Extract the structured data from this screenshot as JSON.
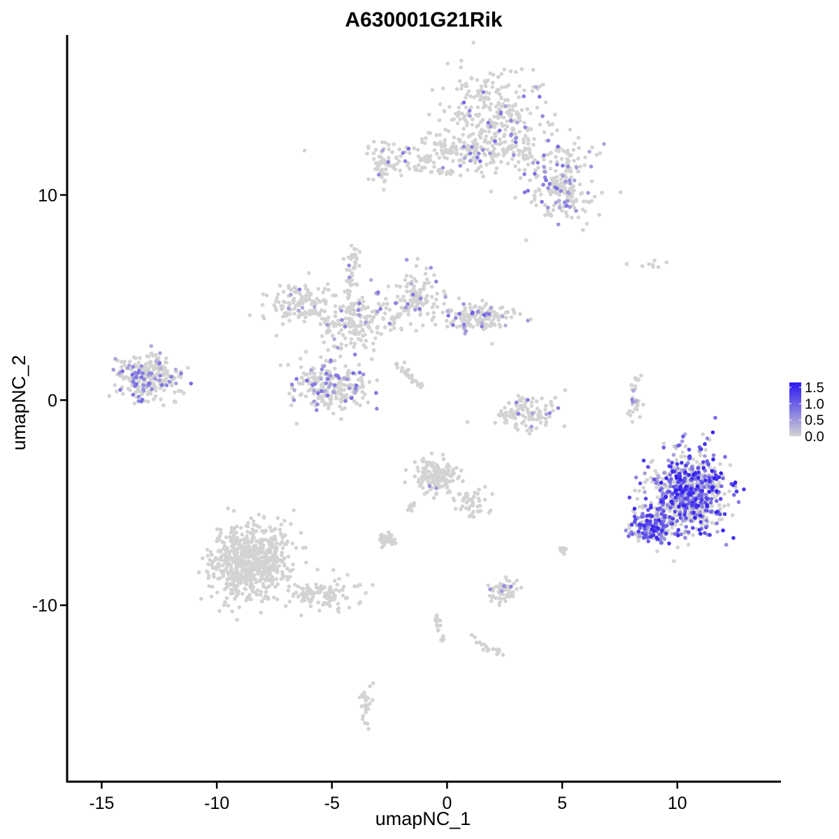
{
  "chart_data": {
    "type": "scatter",
    "title": "A630001G21Rik",
    "xlabel": "umapNC_1",
    "ylabel": "umapNC_2",
    "xlim": [
      -16.5,
      14.5
    ],
    "ylim": [
      -18.6,
      17.8
    ],
    "x_ticks": [
      -15,
      -10,
      -5,
      0,
      5,
      10
    ],
    "x_tick_labels": [
      "-15",
      "-10",
      "-5",
      "0",
      "5",
      "10"
    ],
    "y_ticks": [
      10,
      0,
      -10
    ],
    "y_tick_labels": [
      "10",
      "0",
      "-10"
    ],
    "grid": false,
    "legend": {
      "placement": "right",
      "type": "colorbar",
      "labels": [
        "1.5",
        "1.0",
        "0.5",
        "0.0"
      ],
      "values": [
        1.5,
        1.0,
        0.5,
        0.0
      ],
      "range": [
        0.0,
        1.65
      ],
      "low_color": "#d3d3d3",
      "high_color": "#2a17f2"
    },
    "clusters": [
      {
        "id": "c1",
        "cx": 2.2,
        "cy": 13.8,
        "sx": 1.6,
        "sy": 1.5,
        "n": 300,
        "frac": 0.1,
        "max": 0.9
      },
      {
        "id": "c2",
        "cx": 1.2,
        "cy": 12.1,
        "sx": 3.0,
        "sy": 0.5,
        "n": 200,
        "frac": 0.1,
        "max": 0.9
      },
      {
        "id": "c3",
        "cx": 4.9,
        "cy": 10.5,
        "sx": 0.9,
        "sy": 1.1,
        "n": 180,
        "frac": 0.2,
        "max": 0.9
      },
      {
        "id": "c4",
        "cx": -2.7,
        "cy": 11.5,
        "sx": 0.5,
        "sy": 0.6,
        "n": 60,
        "frac": 0.05,
        "max": 0.8
      },
      {
        "id": "c5",
        "cx": -13.0,
        "cy": 1.1,
        "sx": 0.9,
        "sy": 0.7,
        "n": 280,
        "frac": 0.25,
        "max": 0.9
      },
      {
        "id": "c6",
        "cx": -6.5,
        "cy": 4.7,
        "sx": 1.0,
        "sy": 0.6,
        "n": 110,
        "frac": 0.07,
        "max": 0.8
      },
      {
        "id": "c7",
        "cx": -4.0,
        "cy": 3.8,
        "sx": 1.1,
        "sy": 1.0,
        "n": 180,
        "frac": 0.1,
        "max": 0.8
      },
      {
        "id": "c8",
        "cx": -5.0,
        "cy": 0.7,
        "sx": 1.0,
        "sy": 0.8,
        "n": 240,
        "frac": 0.2,
        "max": 0.9
      },
      {
        "id": "c9",
        "cx": -1.2,
        "cy": 5.0,
        "sx": 0.8,
        "sy": 0.9,
        "n": 110,
        "frac": 0.12,
        "max": 0.8
      },
      {
        "id": "c10",
        "cx": 1.5,
        "cy": 4.0,
        "sx": 1.0,
        "sy": 0.5,
        "n": 150,
        "frac": 0.2,
        "max": 1.0
      },
      {
        "id": "c11",
        "cx": -4.0,
        "cy": 6.8,
        "sx": 0.3,
        "sy": 0.6,
        "n": 25,
        "frac": 0.1,
        "max": 0.8
      },
      {
        "id": "c12",
        "cx": 3.5,
        "cy": -0.7,
        "sx": 0.9,
        "sy": 0.5,
        "n": 120,
        "frac": 0.1,
        "max": 0.8
      },
      {
        "id": "c13",
        "cx": 10.5,
        "cy": -4.5,
        "sx": 1.1,
        "sy": 1.3,
        "n": 700,
        "frac": 0.5,
        "max": 1.6
      },
      {
        "id": "c14",
        "cx": 9.0,
        "cy": -6.2,
        "sx": 0.7,
        "sy": 0.5,
        "n": 180,
        "frac": 0.55,
        "max": 1.5
      },
      {
        "id": "c15",
        "cx": 8.2,
        "cy": -0.4,
        "sx": 0.2,
        "sy": 0.5,
        "n": 20,
        "frac": 0.2,
        "max": 0.7
      },
      {
        "id": "c16",
        "cx": -8.6,
        "cy": -7.8,
        "sx": 1.1,
        "sy": 1.2,
        "n": 650,
        "frac": 0,
        "max": 0
      },
      {
        "id": "c17",
        "cx": -5.5,
        "cy": -9.5,
        "sx": 1.2,
        "sy": 0.5,
        "n": 120,
        "frac": 0,
        "max": 0
      },
      {
        "id": "c18",
        "cx": -0.5,
        "cy": -3.7,
        "sx": 0.6,
        "sy": 0.6,
        "n": 160,
        "frac": 0.01,
        "max": 0.6
      },
      {
        "id": "c19",
        "cx": 0.9,
        "cy": -5.0,
        "sx": 0.6,
        "sy": 0.5,
        "n": 50,
        "frac": 0,
        "max": 0
      },
      {
        "id": "c20",
        "cx": -2.6,
        "cy": -6.8,
        "sx": 0.3,
        "sy": 0.2,
        "n": 30,
        "frac": 0.05,
        "max": 0.6
      },
      {
        "id": "c21",
        "cx": 2.5,
        "cy": -9.3,
        "sx": 0.4,
        "sy": 0.4,
        "n": 60,
        "frac": 0.1,
        "max": 0.7
      },
      {
        "id": "c22",
        "cx": -3.5,
        "cy": -14.8,
        "sx": 0.2,
        "sy": 0.7,
        "n": 25,
        "frac": 0.04,
        "max": 0.7
      },
      {
        "id": "c23",
        "cx": 5.0,
        "cy": -7.4,
        "sx": 0.1,
        "sy": 0.2,
        "n": 8,
        "frac": 0,
        "max": 0
      },
      {
        "id": "c24",
        "cx": 8.9,
        "cy": 6.6,
        "sx": 0.6,
        "sy": 0.2,
        "n": 8,
        "frac": 0,
        "max": 0
      }
    ],
    "strands": [
      {
        "id": "s1",
        "x0": -4.2,
        "y0": 6.9,
        "x1": -4.2,
        "y1": 3.5,
        "n": 30
      },
      {
        "id": "s2",
        "x0": -2.2,
        "y0": 1.8,
        "x1": -1.1,
        "y1": 0.6,
        "n": 30
      },
      {
        "id": "s3",
        "x0": -3.0,
        "y0": 3.0,
        "x1": -1.5,
        "y1": 4.8,
        "n": 25
      },
      {
        "id": "s4",
        "x0": -1.6,
        "y0": 11.3,
        "x1": 0.6,
        "y1": 11.1,
        "n": 25
      },
      {
        "id": "s5",
        "x0": 1.1,
        "y0": -11.5,
        "x1": 2.4,
        "y1": -12.5,
        "n": 18
      },
      {
        "id": "s6",
        "x0": -0.5,
        "y0": -10.4,
        "x1": -0.2,
        "y1": -11.8,
        "n": 20
      },
      {
        "id": "s7",
        "x0": -1.7,
        "y0": -5.5,
        "x1": -1.4,
        "y1": -4.9,
        "n": 10
      },
      {
        "id": "s8",
        "x0": 7.9,
        "y0": 0.2,
        "x1": 8.4,
        "y1": 1.3,
        "n": 12
      }
    ]
  }
}
